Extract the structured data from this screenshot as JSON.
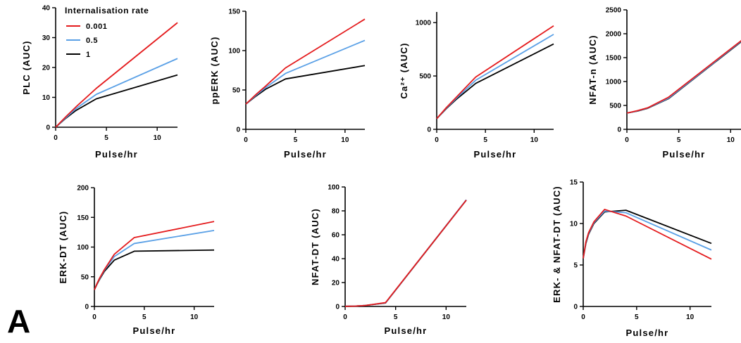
{
  "panel_label": "A",
  "colors": {
    "0.001": "#e41a1c",
    "0.5": "#5aa0e6",
    "1": "#000000"
  },
  "legend": {
    "title": "Internalisation rate",
    "entries": [
      {
        "label": "0.001",
        "color": "#e41a1c"
      },
      {
        "label": "0.5",
        "color": "#5aa0e6"
      },
      {
        "label": "1",
        "color": "#000000"
      }
    ]
  },
  "chart_data": [
    {
      "type": "line",
      "id": "plc",
      "xlabel": "Pulse/hr",
      "ylabel": "PLC (AUC)",
      "xlim": [
        0,
        12
      ],
      "ylim": [
        0,
        40
      ],
      "xticks": [
        0,
        5,
        10
      ],
      "yticks": [
        0,
        10,
        20,
        30,
        40
      ],
      "series": [
        {
          "name": "0.001",
          "color": "#e41a1c",
          "x": [
            0,
            1,
            2,
            4,
            12
          ],
          "y": [
            0,
            3.5,
            6.8,
            13,
            35
          ]
        },
        {
          "name": "0.5",
          "color": "#5aa0e6",
          "x": [
            0,
            1,
            2,
            4,
            12
          ],
          "y": [
            0,
            3.2,
            6.2,
            11,
            23
          ]
        },
        {
          "name": "1",
          "color": "#000000",
          "x": [
            0,
            1,
            2,
            4,
            12
          ],
          "y": [
            0,
            3,
            5.6,
            9.5,
            17.5
          ]
        }
      ]
    },
    {
      "type": "line",
      "id": "pperk",
      "xlabel": "Pulse/hr",
      "ylabel": "ppERK (AUC)",
      "xlim": [
        0,
        12
      ],
      "ylim": [
        0,
        150
      ],
      "xticks": [
        0,
        5,
        10
      ],
      "yticks": [
        0,
        50,
        100,
        150
      ],
      "series": [
        {
          "name": "0.001",
          "color": "#e41a1c",
          "x": [
            0,
            1,
            2,
            4,
            12
          ],
          "y": [
            32,
            44,
            55,
            78,
            140
          ]
        },
        {
          "name": "0.5",
          "color": "#5aa0e6",
          "x": [
            0,
            1,
            2,
            4,
            12
          ],
          "y": [
            32,
            43,
            53,
            71,
            113
          ]
        },
        {
          "name": "1",
          "color": "#000000",
          "x": [
            0,
            1,
            2,
            4,
            12
          ],
          "y": [
            32,
            42,
            51,
            64,
            81
          ]
        }
      ]
    },
    {
      "type": "line",
      "id": "ca",
      "xlabel": "Pulse/hr",
      "ylabel": "Ca²⁺ (AUC)",
      "xlim": [
        0,
        12
      ],
      "ylim": [
        0,
        1100
      ],
      "xticks": [
        0,
        5,
        10
      ],
      "yticks": [
        0,
        500,
        1000
      ],
      "series": [
        {
          "name": "0.001",
          "color": "#e41a1c",
          "x": [
            0,
            1,
            2,
            4,
            12
          ],
          "y": [
            100,
            205,
            300,
            490,
            970
          ]
        },
        {
          "name": "0.5",
          "color": "#5aa0e6",
          "x": [
            0,
            1,
            2,
            4,
            12
          ],
          "y": [
            100,
            200,
            290,
            460,
            890
          ]
        },
        {
          "name": "1",
          "color": "#000000",
          "x": [
            0,
            1,
            2,
            4,
            12
          ],
          "y": [
            100,
            195,
            280,
            430,
            800
          ]
        }
      ]
    },
    {
      "type": "line",
      "id": "nfat-n",
      "xlabel": "Pulse/hr",
      "ylabel": "NFAT-n (AUC)",
      "xlim": [
        0,
        11
      ],
      "ylim": [
        0,
        2500
      ],
      "xticks": [
        0,
        5,
        10
      ],
      "yticks": [
        0,
        500,
        1000,
        1500,
        2000,
        2500
      ],
      "series": [
        {
          "name": "0.001",
          "color": "#e41a1c",
          "x": [
            0,
            1,
            2,
            4,
            12
          ],
          "y": [
            340,
            390,
            450,
            670,
            2020
          ]
        },
        {
          "name": "0.5",
          "color": "#5aa0e6",
          "x": [
            0,
            1,
            2,
            4,
            12
          ],
          "y": [
            340,
            385,
            445,
            650,
            2010
          ]
        },
        {
          "name": "1",
          "color": "#000000",
          "x": [
            0,
            1,
            2,
            4,
            12
          ],
          "y": [
            340,
            380,
            440,
            640,
            2000
          ]
        }
      ]
    },
    {
      "type": "line",
      "id": "erk-dt",
      "xlabel": "Pulse/hr",
      "ylabel": "ERK-DT (AUC)",
      "xlim": [
        0,
        12
      ],
      "ylim": [
        0,
        200
      ],
      "xticks": [
        0,
        5,
        10
      ],
      "yticks": [
        0,
        50,
        100,
        150,
        200
      ],
      "series": [
        {
          "name": "0.001",
          "color": "#e41a1c",
          "x": [
            0,
            0.25,
            0.5,
            1,
            2,
            4,
            12
          ],
          "y": [
            28,
            38,
            47,
            62,
            88,
            116,
            143
          ]
        },
        {
          "name": "0.5",
          "color": "#5aa0e6",
          "x": [
            0,
            0.25,
            0.5,
            1,
            2,
            4,
            12
          ],
          "y": [
            28,
            38,
            46,
            61,
            84,
            106,
            128
          ]
        },
        {
          "name": "1",
          "color": "#000000",
          "x": [
            0,
            0.25,
            0.5,
            1,
            2,
            4,
            12
          ],
          "y": [
            28,
            37,
            45,
            59,
            78,
            93,
            95
          ]
        }
      ]
    },
    {
      "type": "line",
      "id": "nfat-dt",
      "xlabel": "Pulse/hr",
      "ylabel": "NFAT-DT (AUC)",
      "xlim": [
        0,
        12
      ],
      "ylim": [
        0,
        100
      ],
      "xticks": [
        0,
        5,
        10
      ],
      "yticks": [
        0,
        20,
        40,
        60,
        80,
        100
      ],
      "series": [
        {
          "name": "0.001",
          "color": "#e41a1c",
          "x": [
            0,
            1,
            2,
            4,
            12
          ],
          "y": [
            0.1,
            0.3,
            0.8,
            3.2,
            89
          ]
        },
        {
          "name": "0.5",
          "color": "#5aa0e6",
          "x": [
            0,
            1,
            2,
            4,
            12
          ],
          "y": [
            0.1,
            0.3,
            0.8,
            3,
            89.3
          ]
        },
        {
          "name": "1",
          "color": "#000000",
          "x": [
            0,
            1,
            2,
            4,
            12
          ],
          "y": [
            0.1,
            0.3,
            0.8,
            2.9,
            89
          ]
        }
      ]
    },
    {
      "type": "line",
      "id": "erk-nfat-dt",
      "xlabel": "Pulse/hr",
      "ylabel": "ERK- & NFAT-DT (AUC)",
      "xlim": [
        0,
        12
      ],
      "ylim": [
        0,
        15
      ],
      "xticks": [
        0,
        5,
        10
      ],
      "yticks": [
        0,
        5,
        10,
        15
      ],
      "series": [
        {
          "name": "0.001",
          "color": "#e41a1c",
          "x": [
            0,
            0.25,
            0.5,
            1,
            2,
            4,
            12
          ],
          "y": [
            5.8,
            7.8,
            8.9,
            10.2,
            11.7,
            10.9,
            5.7
          ]
        },
        {
          "name": "0.5",
          "color": "#5aa0e6",
          "x": [
            0,
            0.25,
            0.5,
            1,
            2,
            4,
            12
          ],
          "y": [
            5.8,
            7.7,
            8.8,
            10.1,
            11.5,
            11.3,
            6.8
          ]
        },
        {
          "name": "1",
          "color": "#000000",
          "x": [
            0,
            0.25,
            0.5,
            1,
            2,
            4,
            12
          ],
          "y": [
            5.8,
            7.6,
            8.7,
            10,
            11.4,
            11.6,
            7.6
          ]
        }
      ]
    }
  ]
}
